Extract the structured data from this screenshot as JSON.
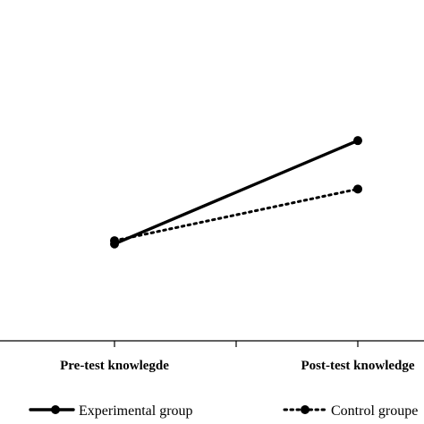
{
  "chart_data": {
    "type": "line",
    "categories": [
      "Pre-test knowlegde",
      "Post-test knowledge"
    ],
    "series": [
      {
        "name": "Experimental group",
        "values": [
          30,
          62
        ],
        "style": "solid"
      },
      {
        "name": "Control groupe",
        "values": [
          31,
          47
        ],
        "style": "dotted"
      }
    ],
    "ylim": [
      0,
      100
    ],
    "grid": false,
    "legend": "bottom",
    "line_color": "#000000"
  }
}
